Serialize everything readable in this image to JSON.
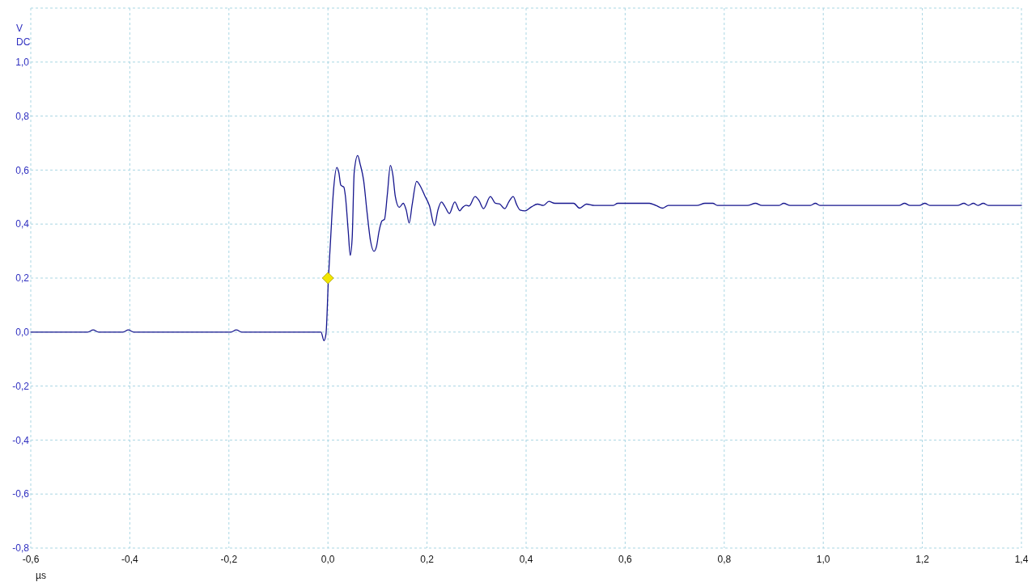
{
  "chart_data": {
    "type": "line",
    "xlabel": "µs",
    "ylabel": "V DC",
    "xlim": [
      -0.6,
      1.4
    ],
    "ylim": [
      -0.8,
      1.2
    ],
    "xticks": [
      {
        "value": -0.6,
        "label": "-0,6"
      },
      {
        "value": -0.4,
        "label": "-0,4"
      },
      {
        "value": -0.2,
        "label": "-0,2"
      },
      {
        "value": 0,
        "label": "0,0"
      },
      {
        "value": 0.2,
        "label": "0,2"
      },
      {
        "value": 0.4,
        "label": "0,4"
      },
      {
        "value": 0.6,
        "label": "0,6"
      },
      {
        "value": 0.8,
        "label": "0,8"
      },
      {
        "value": 1.0,
        "label": "1,0"
      },
      {
        "value": 1.2,
        "label": "1,2"
      },
      {
        "value": 1.4,
        "label": "1,4"
      }
    ],
    "yticks": [
      {
        "value": -0.8,
        "label": "-0,8"
      },
      {
        "value": -0.6,
        "label": "-0,6"
      },
      {
        "value": -0.4,
        "label": "-0,4"
      },
      {
        "value": -0.2,
        "label": "-0,2"
      },
      {
        "value": 0,
        "label": "0,0"
      },
      {
        "value": 0.2,
        "label": "0,2"
      },
      {
        "value": 0.4,
        "label": "0,4"
      },
      {
        "value": 0.6,
        "label": "0,6"
      },
      {
        "value": 0.8,
        "label": "0,8"
      },
      {
        "value": 1.0,
        "label": "1,0"
      },
      {
        "value": 1.2,
        "label": null
      }
    ],
    "grid": true,
    "line_style": "solid",
    "series": [
      {
        "color": "#16168e",
        "x": [
          -0.6,
          -0.485,
          -0.474,
          -0.463,
          -0.414,
          -0.403,
          -0.392,
          -0.196,
          -0.185,
          -0.174,
          -0.014,
          -0.008,
          -0.004,
          0.001,
          0.005,
          0.011,
          0.018,
          0.022,
          0.026,
          0.032,
          0.035,
          0.041,
          0.045,
          0.049,
          0.053,
          0.06,
          0.065,
          0.072,
          0.079,
          0.086,
          0.093,
          0.098,
          0.103,
          0.109,
          0.114,
          0.12,
          0.126,
          0.131,
          0.136,
          0.144,
          0.152,
          0.158,
          0.164,
          0.17,
          0.179,
          0.186,
          0.195,
          0.205,
          0.215,
          0.222,
          0.229,
          0.237,
          0.245,
          0.256,
          0.266,
          0.272,
          0.279,
          0.285,
          0.297,
          0.305,
          0.314,
          0.328,
          0.338,
          0.346,
          0.357,
          0.365,
          0.374,
          0.381,
          0.388,
          0.398,
          0.411,
          0.423,
          0.435,
          0.446,
          0.458,
          0.496,
          0.508,
          0.522,
          0.538,
          0.576,
          0.585,
          0.649,
          0.662,
          0.676,
          0.687,
          0.745,
          0.761,
          0.777,
          0.786,
          0.847,
          0.863,
          0.876,
          0.911,
          0.92,
          0.933,
          0.974,
          0.984,
          0.993,
          1.153,
          1.164,
          1.175,
          1.194,
          1.205,
          1.215,
          1.271,
          1.284,
          1.293,
          1.303,
          1.312,
          1.323,
          1.333,
          1.4
        ],
        "values": [
          0,
          0,
          0.008,
          0,
          0,
          0.008,
          0,
          0,
          0.008,
          0,
          0,
          -0.032,
          -0.007,
          0.2,
          0.332,
          0.52,
          0.61,
          0.59,
          0.544,
          0.537,
          0.507,
          0.372,
          0.284,
          0.352,
          0.592,
          0.654,
          0.622,
          0.562,
          0.442,
          0.337,
          0.299,
          0.317,
          0.372,
          0.412,
          0.417,
          0.512,
          0.617,
          0.582,
          0.502,
          0.462,
          0.477,
          0.452,
          0.404,
          0.472,
          0.558,
          0.542,
          0.507,
          0.467,
          0.394,
          0.452,
          0.482,
          0.462,
          0.439,
          0.482,
          0.449,
          0.462,
          0.47,
          0.467,
          0.502,
          0.487,
          0.457,
          0.502,
          0.477,
          0.475,
          0.457,
          0.482,
          0.502,
          0.472,
          0.452,
          0.449,
          0.464,
          0.474,
          0.469,
          0.484,
          0.477,
          0.477,
          0.459,
          0.474,
          0.469,
          0.469,
          0.477,
          0.477,
          0.469,
          0.459,
          0.469,
          0.469,
          0.477,
          0.477,
          0.469,
          0.469,
          0.477,
          0.469,
          0.469,
          0.477,
          0.469,
          0.469,
          0.477,
          0.469,
          0.469,
          0.477,
          0.469,
          0.469,
          0.477,
          0.469,
          0.469,
          0.477,
          0.469,
          0.477,
          0.469,
          0.477,
          0.469,
          0.469
        ]
      },
      {
        "type": "scatter",
        "color": "#f2e600",
        "marker": "diamond",
        "x": [
          0
        ],
        "values": [
          0.2
        ]
      }
    ]
  }
}
